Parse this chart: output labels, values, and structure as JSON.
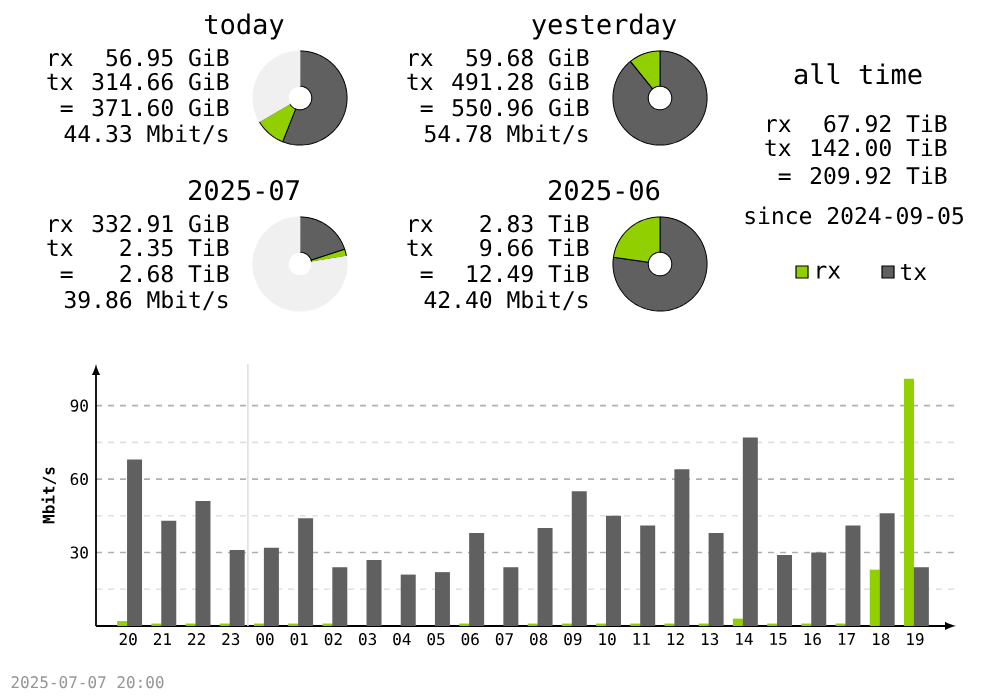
{
  "chart_data": [
    {
      "type": "donut",
      "title": "today",
      "categories": [
        null,
        null,
        null
      ],
      "values": [
        56.0,
        10.6,
        33.4
      ],
      "colors": [
        "#606060",
        "#92cf00",
        "#f0f0f0"
      ],
      "annotations": [
        "rx",
        "56.95 GiB",
        "tx",
        "314.66 GiB",
        "=",
        "371.60 GiB",
        "44.33 Mbit/s"
      ]
    },
    {
      "type": "donut",
      "title": "yesterday",
      "categories": [
        null,
        null
      ],
      "values": [
        89.2,
        10.8
      ],
      "colors": [
        "#606060",
        "#92cf00"
      ],
      "annotations": [
        "rx",
        "59.68 GiB",
        "tx",
        "491.28 GiB",
        "=",
        "550.96 GiB",
        "54.78 Mbit/s"
      ]
    },
    {
      "type": "other",
      "title": "all time",
      "annotations": [
        "rx",
        "67.92 TiB",
        "tx",
        "142.00 TiB",
        "=",
        "209.92 TiB",
        "since 2024-09-05"
      ]
    },
    {
      "type": "donut",
      "title": "2025-07",
      "categories": [
        null,
        null,
        null
      ],
      "values": [
        19.9,
        2.5,
        77.6
      ],
      "colors": [
        "#606060",
        "#92cf00",
        "#f0f0f0"
      ],
      "annotations": [
        "rx",
        "332.91 GiB",
        "tx",
        "2.35 TiB",
        "=",
        "2.68 TiB",
        "39.86 Mbit/s"
      ]
    },
    {
      "type": "donut",
      "title": "2025-06",
      "categories": [
        null,
        null
      ],
      "values": [
        77.3,
        22.7
      ],
      "colors": [
        "#606060",
        "#92cf00"
      ],
      "annotations": [
        "rx",
        "2.83 TiB",
        "tx",
        "9.66 TiB",
        "=",
        "12.49 TiB",
        "42.40 Mbit/s"
      ]
    },
    {
      "type": "bar",
      "ylabel": "Mbit/s",
      "categories": [
        "20",
        "21",
        "22",
        "23",
        "00",
        "01",
        "02",
        "03",
        "04",
        "05",
        "06",
        "07",
        "08",
        "09",
        "10",
        "11",
        "12",
        "13",
        "14",
        "15",
        "16",
        "17",
        "18",
        "19"
      ],
      "series": [
        {
          "name": "rx",
          "color": "#92cf00",
          "values": [
            2,
            1,
            1,
            1,
            1,
            1,
            1,
            0,
            0,
            0,
            1,
            0,
            1,
            1,
            1,
            1,
            1,
            1,
            3,
            1,
            1,
            1,
            23,
            101
          ]
        },
        {
          "name": "tx",
          "color": "#606060",
          "values": [
            68,
            43,
            51,
            31,
            32,
            44,
            24,
            27,
            21,
            22,
            38,
            24,
            40,
            55,
            45,
            41,
            64,
            38,
            77,
            29,
            30,
            41,
            46,
            24
          ]
        }
      ],
      "ylim": [
        0,
        107
      ],
      "yticks": [
        {
          "value": 15,
          "label": null
        },
        30,
        {
          "value": 45,
          "label": null
        },
        60,
        {
          "value": 75,
          "label": null
        },
        90
      ],
      "grid": "y",
      "legend": "top right",
      "ref_lines": [
        {
          "axis": "x",
          "value": "00",
          "color": "#e0e0e0"
        }
      ],
      "annotations": [
        "2025-07-07 20:00"
      ]
    }
  ]
}
